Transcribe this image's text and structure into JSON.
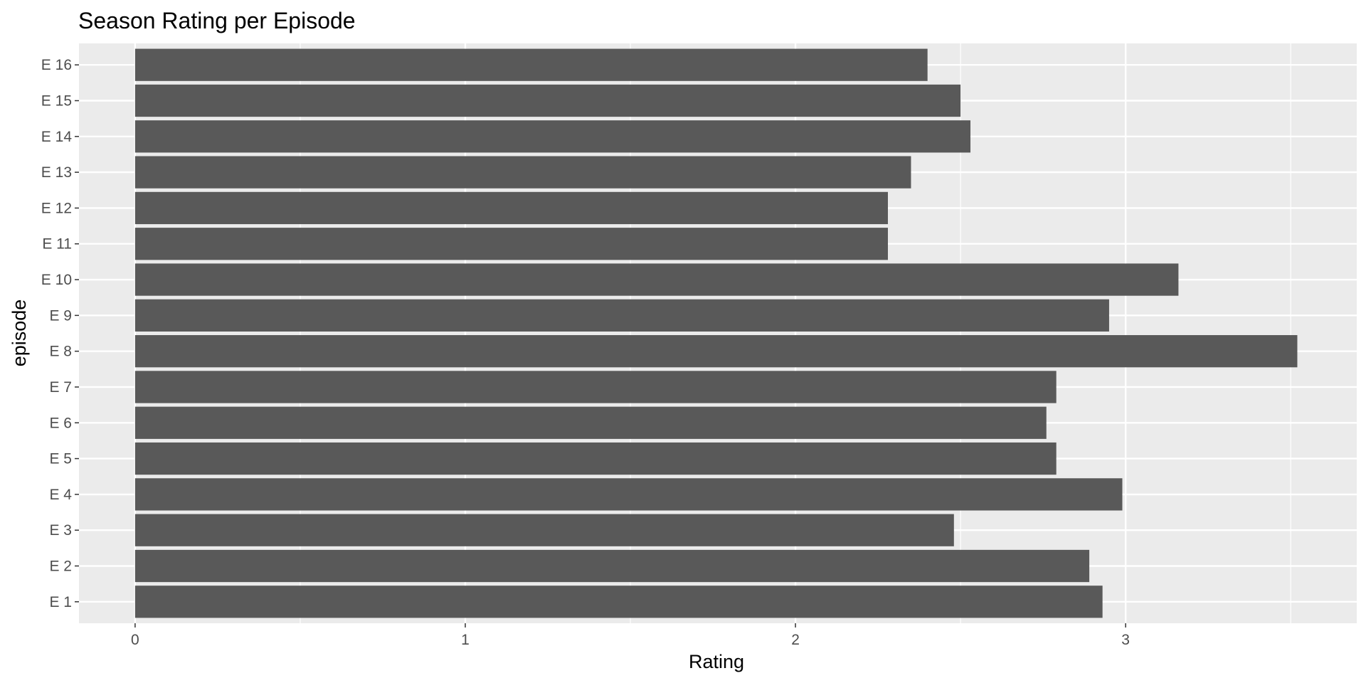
{
  "chart_data": {
    "type": "bar",
    "orientation": "horizontal",
    "title": "Season Rating per Episode",
    "xlabel": "Rating",
    "ylabel": "episode",
    "categories": [
      "E 1",
      "E 2",
      "E 3",
      "E 4",
      "E 5",
      "E 6",
      "E 7",
      "E 8",
      "E 9",
      "E 10",
      "E 11",
      "E 12",
      "E 13",
      "E 14",
      "E 15",
      "E 16"
    ],
    "values": [
      2.93,
      2.89,
      2.48,
      2.99,
      2.79,
      2.76,
      2.79,
      3.52,
      2.95,
      3.16,
      2.28,
      2.28,
      2.35,
      2.53,
      2.5,
      2.4
    ],
    "xlim": [
      -0.17,
      3.7
    ],
    "xticks": [
      "0",
      "1",
      "2",
      "3"
    ],
    "grid": true,
    "legend": "none",
    "colors": {
      "bar": "#595959",
      "panel": "#ebebeb",
      "grid": "#ffffff",
      "tick": "#333333"
    }
  }
}
